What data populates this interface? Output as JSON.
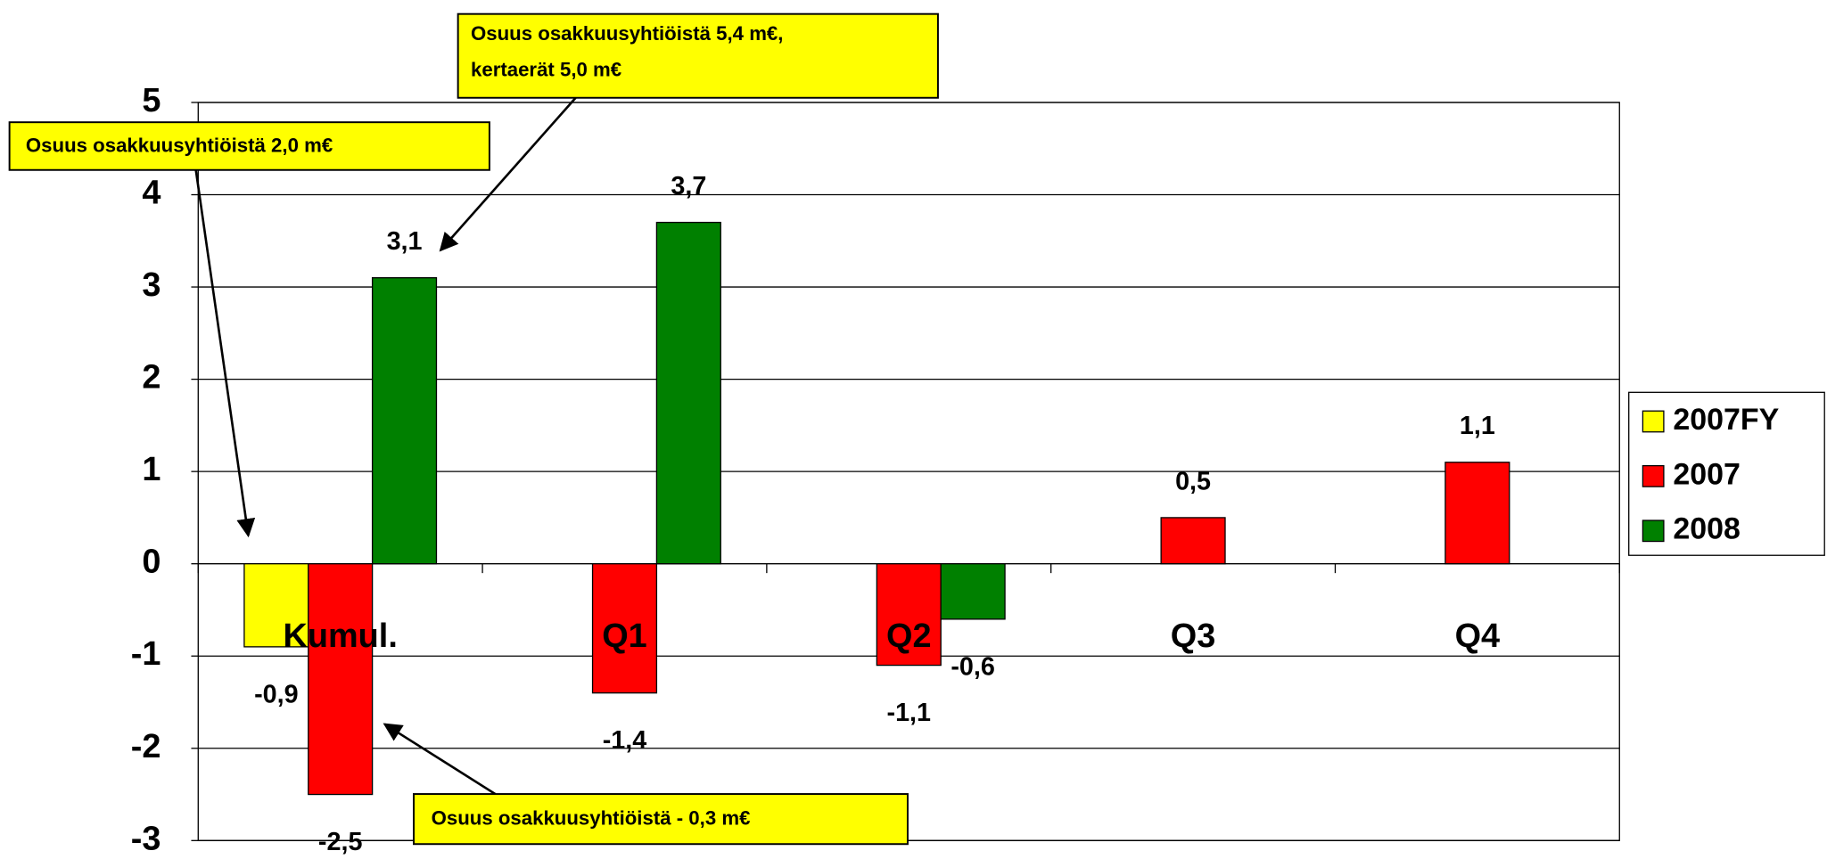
{
  "chart_data": {
    "type": "bar",
    "categories": [
      "Kumul.",
      "Q1",
      "Q2",
      "Q3",
      "Q4"
    ],
    "series": [
      {
        "name": "2007FY",
        "color": "#ffff00",
        "values": [
          -0.9,
          null,
          null,
          null,
          null
        ],
        "value_labels": [
          "-0,9",
          null,
          null,
          null,
          null
        ]
      },
      {
        "name": "2007",
        "color": "#ff0000",
        "values": [
          -2.5,
          -1.4,
          -1.1,
          0.5,
          1.1
        ],
        "value_labels": [
          "-2,5",
          "-1,4",
          "-1,1",
          "0,5",
          "1,1"
        ]
      },
      {
        "name": "2008",
        "color": "#008000",
        "values": [
          3.1,
          3.7,
          -0.6,
          null,
          null
        ],
        "value_labels": [
          "3,1",
          "3,7",
          "-0,6",
          null,
          null
        ]
      }
    ],
    "ylim": [
      -3,
      5
    ],
    "yticks": [
      -3,
      -2,
      -1,
      0,
      1,
      2,
      3,
      4,
      5
    ],
    "grid": true,
    "legend": "right",
    "annotations": [
      {
        "lines": [
          "Osuus osakkuusyhtiöistä 5,4 m€,",
          "kertaerät 5,0 m€"
        ]
      },
      {
        "lines": [
          "Osuus osakkuusyhtiöistä 2,0 m€"
        ]
      },
      {
        "lines": [
          "Osuus osakkuusyhtiöistä - 0,3 m€"
        ]
      }
    ]
  }
}
